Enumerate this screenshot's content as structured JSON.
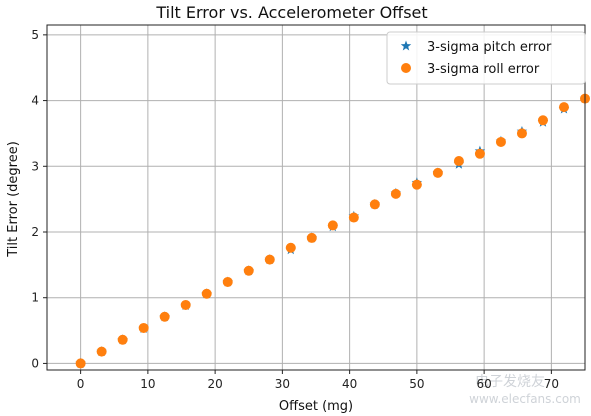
{
  "chart_data": {
    "type": "scatter",
    "title": "Tilt Error vs. Accelerometer Offset",
    "xlabel": "Offset (mg)",
    "ylabel": "Tilt Error (degree)",
    "xlim": [
      -5,
      75
    ],
    "ylim": [
      -0.1,
      5.15
    ],
    "xticks": [
      0,
      10,
      20,
      30,
      40,
      50,
      60,
      70
    ],
    "yticks": [
      0,
      1,
      2,
      3,
      4,
      5
    ],
    "grid": true,
    "legend_position": "top-right",
    "series": [
      {
        "name": "3-sigma pitch error",
        "marker": "star",
        "color": "#1f77b4",
        "x": [
          0,
          3.125,
          6.25,
          9.375,
          12.5,
          15.625,
          18.75,
          21.875,
          25,
          28.125,
          31.25,
          34.375,
          37.5,
          40.625,
          43.75,
          46.875,
          50,
          53.125,
          56.25,
          59.375,
          62.5,
          65.625,
          68.75,
          71.875,
          75
        ],
        "values": [
          0.0,
          0.18,
          0.36,
          0.53,
          0.71,
          0.88,
          1.06,
          1.24,
          1.41,
          1.58,
          1.73,
          1.91,
          2.08,
          2.24,
          2.42,
          2.59,
          2.75,
          2.9,
          3.03,
          3.23,
          3.38,
          3.53,
          3.67,
          3.87,
          4.03
        ]
      },
      {
        "name": "3-sigma roll error",
        "marker": "circle",
        "color": "#ff7f0e",
        "x": [
          0,
          3.125,
          6.25,
          9.375,
          12.5,
          15.625,
          18.75,
          21.875,
          25,
          28.125,
          31.25,
          34.375,
          37.5,
          40.625,
          43.75,
          46.875,
          50,
          53.125,
          56.25,
          59.375,
          62.5,
          65.625,
          68.75,
          71.875,
          75
        ],
        "values": [
          0.0,
          0.18,
          0.36,
          0.54,
          0.71,
          0.89,
          1.06,
          1.24,
          1.41,
          1.58,
          1.76,
          1.91,
          2.1,
          2.22,
          2.42,
          2.58,
          2.72,
          2.9,
          3.08,
          3.19,
          3.37,
          3.5,
          3.7,
          3.9,
          4.03
        ]
      }
    ]
  },
  "watermark": "电子发烧友\nwww.elecfans.com"
}
